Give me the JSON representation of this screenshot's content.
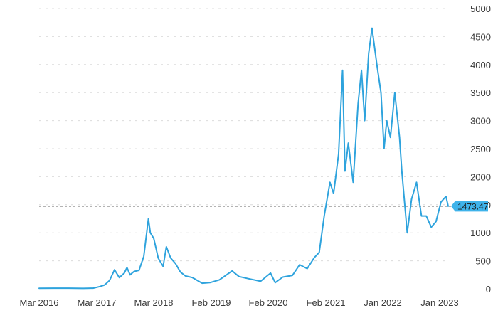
{
  "chart_data": {
    "type": "line",
    "title": "",
    "xlabel": "",
    "ylabel": "",
    "x_ticks": [
      "Mar 2016",
      "Mar 2017",
      "Mar 2018",
      "Feb 2019",
      "Feb 2020",
      "Feb 2021",
      "Jan 2022",
      "Jan 2023"
    ],
    "y_ticks": [
      0,
      500,
      1000,
      1500,
      2000,
      2500,
      3000,
      3500,
      4000,
      4500,
      5000
    ],
    "ylim": [
      0,
      5000
    ],
    "xlim": [
      "2016-03-01",
      "2023-03-01"
    ],
    "grid": true,
    "reference_line": {
      "value": 1473.47,
      "label": "1473.47"
    },
    "colors": {
      "series": "#2ea3dd",
      "badge": "#3fb3ea",
      "grid": "#dcdcdc",
      "reference": "#9a9a9a"
    },
    "series": [
      {
        "name": "",
        "points": [
          [
            "2016-03-01",
            10
          ],
          [
            "2016-06-01",
            12
          ],
          [
            "2016-09-01",
            12
          ],
          [
            "2016-12-01",
            8
          ],
          [
            "2017-02-01",
            12
          ],
          [
            "2017-03-15",
            40
          ],
          [
            "2017-04-15",
            70
          ],
          [
            "2017-05-15",
            150
          ],
          [
            "2017-06-15",
            340
          ],
          [
            "2017-07-15",
            200
          ],
          [
            "2017-08-15",
            280
          ],
          [
            "2017-09-01",
            380
          ],
          [
            "2017-09-20",
            250
          ],
          [
            "2017-10-15",
            310
          ],
          [
            "2017-11-15",
            330
          ],
          [
            "2017-12-15",
            580
          ],
          [
            "2018-01-13",
            1250
          ],
          [
            "2018-01-25",
            1000
          ],
          [
            "2018-02-15",
            900
          ],
          [
            "2018-03-15",
            550
          ],
          [
            "2018-04-15",
            400
          ],
          [
            "2018-05-05",
            750
          ],
          [
            "2018-06-01",
            550
          ],
          [
            "2018-07-01",
            450
          ],
          [
            "2018-08-01",
            300
          ],
          [
            "2018-09-01",
            230
          ],
          [
            "2018-10-15",
            200
          ],
          [
            "2018-12-15",
            100
          ],
          [
            "2019-02-01",
            110
          ],
          [
            "2019-04-01",
            160
          ],
          [
            "2019-06-20",
            320
          ],
          [
            "2019-08-01",
            220
          ],
          [
            "2019-10-01",
            180
          ],
          [
            "2019-12-15",
            135
          ],
          [
            "2020-02-15",
            280
          ],
          [
            "2020-03-15",
            110
          ],
          [
            "2020-05-01",
            210
          ],
          [
            "2020-07-01",
            240
          ],
          [
            "2020-08-15",
            430
          ],
          [
            "2020-10-01",
            360
          ],
          [
            "2020-11-15",
            560
          ],
          [
            "2020-12-15",
            650
          ],
          [
            "2021-01-15",
            1300
          ],
          [
            "2021-02-20",
            1900
          ],
          [
            "2021-03-15",
            1700
          ],
          [
            "2021-04-15",
            2400
          ],
          [
            "2021-05-10",
            3900
          ],
          [
            "2021-05-25",
            2100
          ],
          [
            "2021-06-15",
            2600
          ],
          [
            "2021-07-15",
            1900
          ],
          [
            "2021-08-15",
            3300
          ],
          [
            "2021-09-05",
            3900
          ],
          [
            "2021-09-25",
            3000
          ],
          [
            "2021-10-20",
            4200
          ],
          [
            "2021-11-10",
            4650
          ],
          [
            "2021-12-10",
            4000
          ],
          [
            "2022-01-05",
            3500
          ],
          [
            "2022-01-24",
            2500
          ],
          [
            "2022-02-10",
            3000
          ],
          [
            "2022-03-05",
            2700
          ],
          [
            "2022-04-01",
            3500
          ],
          [
            "2022-05-01",
            2700
          ],
          [
            "2022-05-15",
            2100
          ],
          [
            "2022-06-18",
            1000
          ],
          [
            "2022-07-15",
            1600
          ],
          [
            "2022-08-15",
            1900
          ],
          [
            "2022-09-15",
            1300
          ],
          [
            "2022-10-15",
            1300
          ],
          [
            "2022-11-15",
            1100
          ],
          [
            "2022-12-15",
            1200
          ],
          [
            "2023-01-15",
            1550
          ],
          [
            "2023-02-15",
            1650
          ],
          [
            "2023-03-01",
            1473.47
          ]
        ]
      }
    ]
  }
}
